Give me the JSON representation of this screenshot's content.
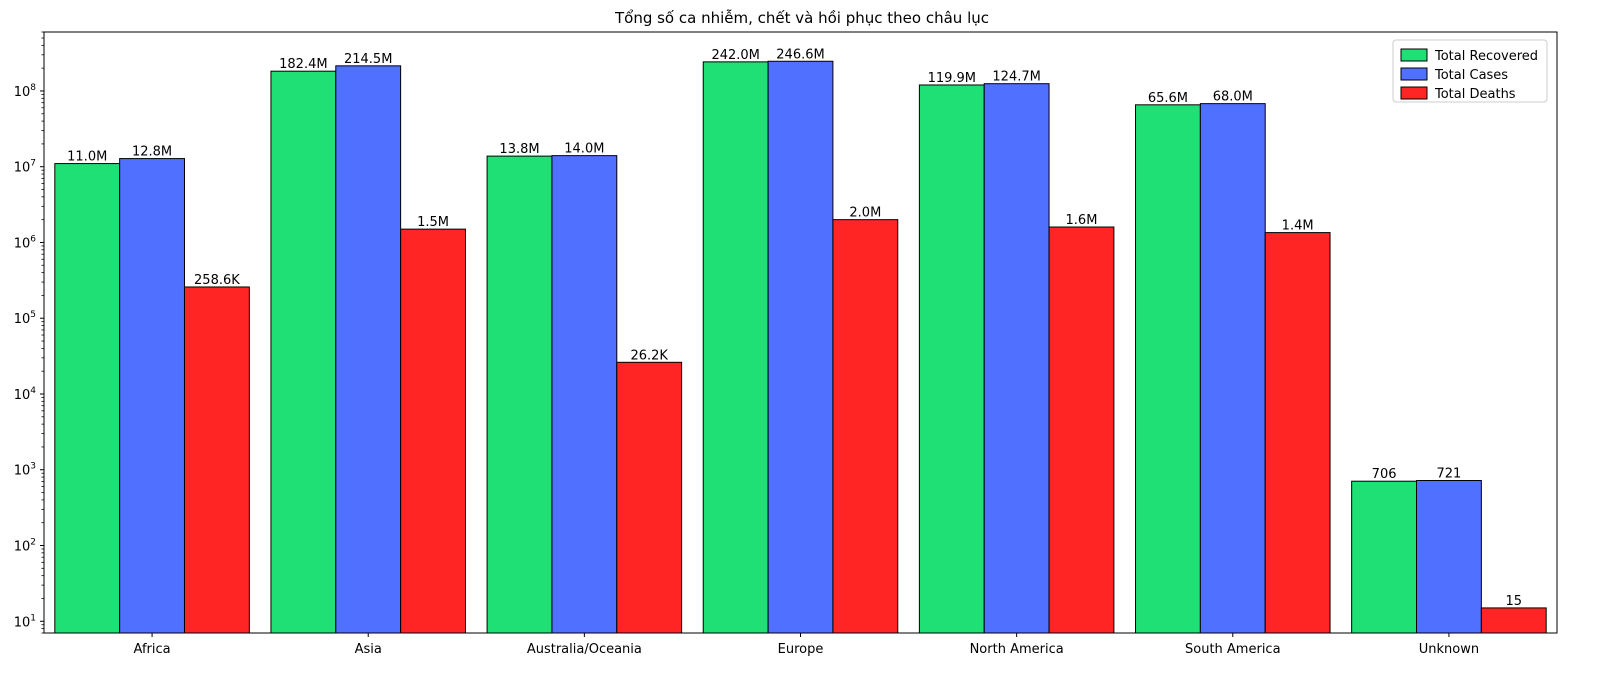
{
  "chart_data": {
    "type": "bar",
    "title": "Tổng số ca nhiễm, chết và hồi phục theo châu lục",
    "xlabel": "",
    "ylabel": "",
    "yscale": "log",
    "ylim": [
      7,
      600000000
    ],
    "yticks": [
      {
        "value": 10,
        "base": "10",
        "exp": "1"
      },
      {
        "value": 100,
        "base": "10",
        "exp": "2"
      },
      {
        "value": 1000,
        "base": "10",
        "exp": "3"
      },
      {
        "value": 10000,
        "base": "10",
        "exp": "4"
      },
      {
        "value": 100000,
        "base": "10",
        "exp": "5"
      },
      {
        "value": 1000000,
        "base": "10",
        "exp": "6"
      },
      {
        "value": 10000000,
        "base": "10",
        "exp": "7"
      },
      {
        "value": 100000000,
        "base": "10",
        "exp": "8"
      }
    ],
    "categories": [
      "Africa",
      "Asia",
      "Australia/Oceania",
      "Europe",
      "North America",
      "South America",
      "Unknown"
    ],
    "series": [
      {
        "name": "Total Recovered",
        "color": "#1fe075",
        "values": [
          11000000,
          182400000,
          13800000,
          242000000,
          119900000,
          65600000,
          706
        ],
        "labels": [
          "11.0M",
          "182.4M",
          "13.8M",
          "242.0M",
          "119.9M",
          "65.6M",
          "706"
        ]
      },
      {
        "name": "Total Cases",
        "color": "#5070ff",
        "values": [
          12800000,
          214500000,
          14000000,
          246600000,
          124700000,
          68000000,
          721
        ],
        "labels": [
          "12.8M",
          "214.5M",
          "14.0M",
          "246.6M",
          "124.7M",
          "68.0M",
          "721"
        ]
      },
      {
        "name": "Total Deaths",
        "color": "#ff2525",
        "values": [
          258600,
          1500000,
          26200,
          2000000,
          1600000,
          1350000,
          15
        ],
        "labels": [
          "258.6K",
          "1.5M",
          "26.2K",
          "2.0M",
          "1.6M",
          "1.4M",
          "15"
        ]
      }
    ],
    "legend_position": "top-right",
    "grid": false
  }
}
